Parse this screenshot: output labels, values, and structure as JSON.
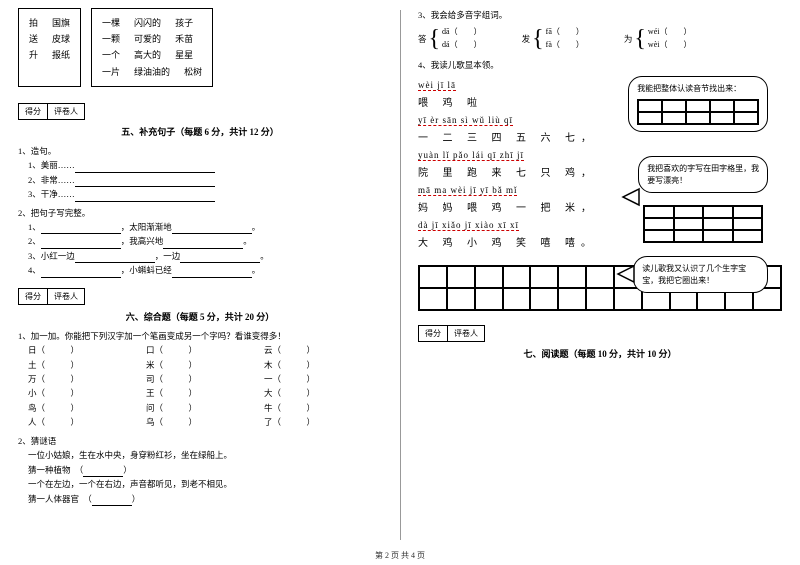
{
  "footer": "第 2 页 共 4 页",
  "left": {
    "box1": [
      [
        "拍",
        "国旗"
      ],
      [
        "送",
        "皮球"
      ],
      [
        "升",
        "报纸"
      ]
    ],
    "box2": [
      [
        "一棵",
        "闪闪的",
        "孩子"
      ],
      [
        "一颗",
        "可爱的",
        "禾苗"
      ],
      [
        "一个",
        "高大的",
        "星星"
      ],
      [
        "一片",
        "绿油油的",
        "松树"
      ]
    ],
    "scoreLabels": {
      "score": "得分",
      "grader": "评卷人"
    },
    "sec5": {
      "title": "五、补充句子（每题 6 分，共计 12 分）",
      "q1": "1、造句。",
      "q1_items": [
        "1、美丽……",
        "2、非常……",
        "3、干净……"
      ],
      "q2": "2、把句子写完整。",
      "q2_items": [
        {
          "a": "1、",
          "b": "，太阳渐渐地",
          "c": "。"
        },
        {
          "a": "2、",
          "b": "，我高兴地",
          "c": "。"
        },
        {
          "a": "3、小红一边",
          "b": "，一边",
          "c": "。"
        },
        {
          "a": "4、",
          "b": "，小蝌蚪已经",
          "c": "。"
        }
      ]
    },
    "sec6": {
      "title": "六、综合题（每题 5 分，共计 20 分）",
      "q1": "1、加一加。你能把下列汉字加一个笔画变成另一个字吗？看谁变得多！",
      "rows": [
        [
          "日（",
          "）",
          "口（",
          "）",
          "云（",
          "）"
        ],
        [
          "土（",
          "）",
          "米（",
          "）",
          "木（",
          "）"
        ],
        [
          "万（",
          "）",
          "司（",
          "）",
          "一（",
          "）"
        ],
        [
          "小（",
          "）",
          "王（",
          "）",
          "大（",
          "）"
        ],
        [
          "鸟（",
          "）",
          "问（",
          "）",
          "牛（",
          "）"
        ],
        [
          "人（",
          "）",
          "乌（",
          "）",
          "了（",
          "）"
        ]
      ],
      "q2": "2、猜谜语",
      "riddle1a": "一位小姑娘，生在水中央，身穿粉红衫，坐在绿船上。",
      "riddle1b": "猜一种植物",
      "riddle2a": "一个在左边，一个在右边，声音都听见，到老不相见。",
      "riddle2b": "猜一人体器官"
    }
  },
  "right": {
    "q3": "3、我会给多音字组词。",
    "multi": [
      {
        "char": "答",
        "top": "dā（",
        "bot": "dá（"
      },
      {
        "char": "发",
        "top": "fā（",
        "bot": "fà（"
      },
      {
        "char": "为",
        "top": "wéi（",
        "bot": "wèi（"
      }
    ],
    "q4": "4、我读儿歌显本领。",
    "lines": [
      {
        "py": "wèi  jī  lā",
        "hz": "喂  鸡  啦"
      },
      {
        "py": "yī  èr  sān  sì  wǔ  liù  qī",
        "hz": "一 二 三 四 五 六 七，"
      },
      {
        "py": "yuàn  lǐ  pǎo  lái  qī zhī jī",
        "hz": "院 里 跑 来 七 只 鸡，"
      },
      {
        "py": "mā  ma  wèi  jī  yī bǎ mǐ",
        "hz": "妈 妈 喂 鸡 一 把 米，"
      },
      {
        "py": "dà  jī  xiǎo  jī  xiào  xī  xī",
        "hz": "大 鸡 小 鸡 笑 嘻 嘻。"
      }
    ],
    "bubble1": "我能把整体认读音节找出来：",
    "bubble2": "我把喜欢的字写在田字格里，我要写漂亮！",
    "bubble3": "读儿歌我又认识了几个生字宝宝，我把它圈出来！",
    "scoreLabels": {
      "score": "得分",
      "grader": "评卷人"
    },
    "sec7": "七、阅读题（每题 10 分，共计 10 分）"
  }
}
